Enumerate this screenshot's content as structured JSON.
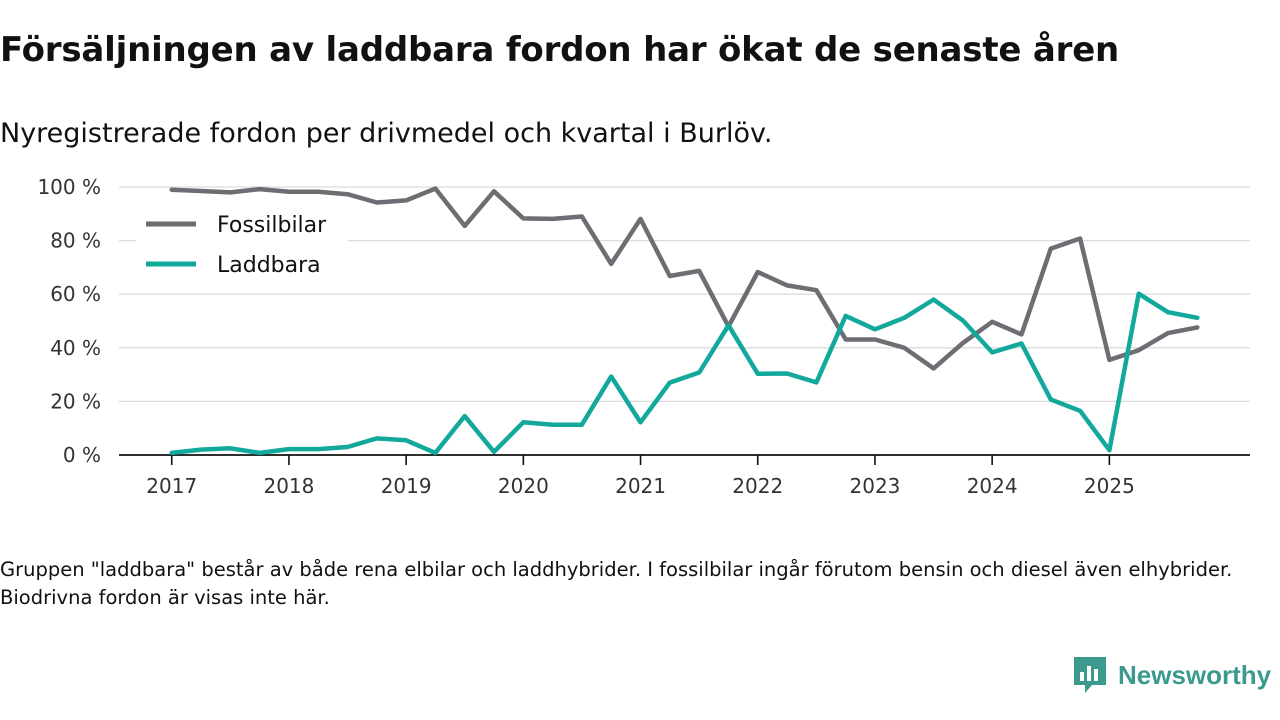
{
  "header": {
    "title": "Försäljningen av laddbara fordon har ökat de senaste åren",
    "subtitle": "Nyregistrerade fordon per drivmedel och kvartal i Burlöv."
  },
  "footer": {
    "note": "Gruppen \"laddbara\" består av både rena elbilar och laddhybrider. I fossilbilar ingår förutom bensin och diesel även elhybrider. Biodrivna fordon är visas inte här.",
    "brand": "Newsworthy"
  },
  "colors": {
    "fossil": "#6e6d73",
    "laddbara": "#13a89c",
    "grid": "#dcdcdc",
    "brand": "#3a9a8e"
  },
  "chart_data": {
    "type": "line",
    "title": "Försäljningen av laddbara fordon har ökat de senaste åren",
    "subtitle": "Nyregistrerade fordon per drivmedel och kvartal i Burlöv.",
    "xlabel": "",
    "ylabel": "",
    "ylim": [
      0,
      100
    ],
    "xlim": [
      2016.55,
      2026.2
    ],
    "y_ticks": [
      0,
      20,
      40,
      60,
      80,
      100
    ],
    "y_tick_labels": [
      "0 %",
      "20 %",
      "40 %",
      "60 %",
      "80 %",
      "100 %"
    ],
    "x_ticks": [
      2017,
      2018,
      2019,
      2020,
      2021,
      2022,
      2023,
      2024,
      2025
    ],
    "x_tick_labels": [
      "2017",
      "2018",
      "2019",
      "2020",
      "2021",
      "2022",
      "2023",
      "2024",
      "2025"
    ],
    "grid": true,
    "legend_position": "top-left",
    "x": [
      2017,
      2017.25,
      2017.5,
      2017.75,
      2018,
      2018.25,
      2018.5,
      2018.75,
      2019,
      2019.25,
      2019.5,
      2019.75,
      2020,
      2020.25,
      2020.5,
      2020.75,
      2021,
      2021.25,
      2021.5,
      2021.75,
      2022,
      2022.25,
      2022.5,
      2022.75,
      2023,
      2023.25,
      2023.5,
      2023.75,
      2024,
      2024.25,
      2024.5,
      2024.75,
      2025,
      2025.25,
      2025.5,
      2025.75
    ],
    "series": [
      {
        "name": "Fossilbilar",
        "color": "#6e6d73",
        "values": [
          99,
          98.5,
          98,
          99.2,
          98.2,
          98.2,
          97.3,
          94.2,
          95,
          99.4,
          85.5,
          98.4,
          88.3,
          88.1,
          89,
          71.3,
          88.1,
          66.8,
          68.7,
          48,
          68.3,
          63.3,
          61.5,
          43.1,
          43.1,
          40,
          32.3,
          41.8,
          49.7,
          45,
          77,
          80.8,
          35.5,
          39.1,
          45.5,
          47.6
        ]
      },
      {
        "name": "Laddbara",
        "color": "#13a89c",
        "values": [
          0.8,
          2,
          2.5,
          0.8,
          2.2,
          2.2,
          3,
          6.2,
          5.5,
          0.8,
          14.5,
          1.2,
          12.2,
          11.3,
          11.3,
          29.3,
          12.2,
          27,
          30.8,
          48.4,
          30.3,
          30.4,
          27.1,
          51.9,
          46.9,
          51.2,
          58,
          50.2,
          38.3,
          41.6,
          20.7,
          16.5,
          1.8,
          60.2,
          53.3,
          51.2
        ]
      }
    ]
  }
}
